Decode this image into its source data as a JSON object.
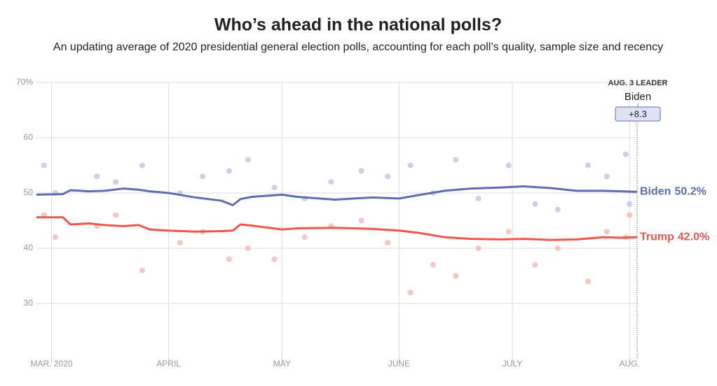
{
  "chart_data": {
    "type": "line",
    "title": "Who’s ahead in the national polls?",
    "subtitle": "An updating average of 2020 presidential general election polls, accounting for each poll’s quality, sample size and recency",
    "x": [
      57,
      64,
      66,
      71,
      75,
      80,
      84,
      87,
      92,
      99,
      106,
      109,
      111,
      114,
      122,
      126,
      136,
      146,
      153,
      158,
      165,
      172,
      180,
      186,
      193,
      200,
      207,
      212,
      216
    ],
    "xlim": [
      57,
      216
    ],
    "xticks": [
      {
        "value": 61,
        "label": "MAR. 2020"
      },
      {
        "value": 92,
        "label": "APRIL"
      },
      {
        "value": 122,
        "label": "MAY"
      },
      {
        "value": 153,
        "label": "JUNE"
      },
      {
        "value": 183,
        "label": "JULY"
      },
      {
        "value": 214,
        "label": "AUG."
      }
    ],
    "ylim": [
      20,
      70
    ],
    "yticks": [
      {
        "value": 70,
        "label": "70%"
      },
      60,
      50,
      40,
      30
    ],
    "grid": true,
    "series": [
      {
        "name": "Biden",
        "color": "#5e6eb2",
        "end_label": "50.2%",
        "values": [
          49.7,
          49.8,
          50.5,
          50.3,
          50.4,
          50.8,
          50.6,
          50.3,
          50.0,
          49.2,
          48.6,
          47.8,
          48.9,
          49.3,
          49.7,
          49.3,
          48.8,
          49.2,
          49.0,
          49.6,
          50.4,
          50.8,
          51.0,
          51.2,
          50.9,
          50.4,
          50.4,
          50.3,
          50.2
        ]
      },
      {
        "name": "Trump",
        "color": "#f0574b",
        "end_label": "42.0%",
        "values": [
          45.6,
          45.6,
          44.3,
          44.5,
          44.2,
          44.0,
          44.2,
          43.4,
          43.2,
          43.0,
          43.1,
          43.2,
          44.3,
          44.1,
          43.4,
          43.6,
          43.7,
          43.5,
          43.2,
          42.8,
          42.0,
          41.7,
          41.6,
          41.7,
          41.5,
          41.6,
          42.0,
          41.9,
          42.0
        ]
      }
    ],
    "polls": [
      {
        "color": "#b9c1df",
        "x": [
          59,
          62,
          73,
          78,
          85,
          95,
          101,
          108,
          113,
          120,
          128,
          135,
          143,
          150,
          156,
          162,
          168,
          174,
          182,
          189,
          195,
          203,
          208,
          213,
          214
        ],
        "values": [
          55,
          50,
          53,
          52,
          55,
          50,
          53,
          54,
          56,
          51,
          49,
          52,
          54,
          53,
          55,
          50,
          56,
          49,
          55,
          48,
          47,
          55,
          53,
          57,
          48
        ]
      },
      {
        "color": "#f7b3ac",
        "x": [
          59,
          62,
          73,
          78,
          85,
          95,
          101,
          108,
          113,
          120,
          128,
          135,
          143,
          150,
          156,
          162,
          168,
          174,
          182,
          189,
          195,
          203,
          208,
          213,
          214
        ],
        "values": [
          46,
          42,
          44,
          46,
          36,
          41,
          43,
          38,
          40,
          38,
          42,
          44,
          45,
          41,
          32,
          37,
          35,
          40,
          43,
          37,
          40,
          34,
          43,
          42,
          46
        ]
      }
    ],
    "leader": {
      "label": "AUG. 3 LEADER",
      "name": "Biden",
      "margin": "+8.3"
    }
  }
}
